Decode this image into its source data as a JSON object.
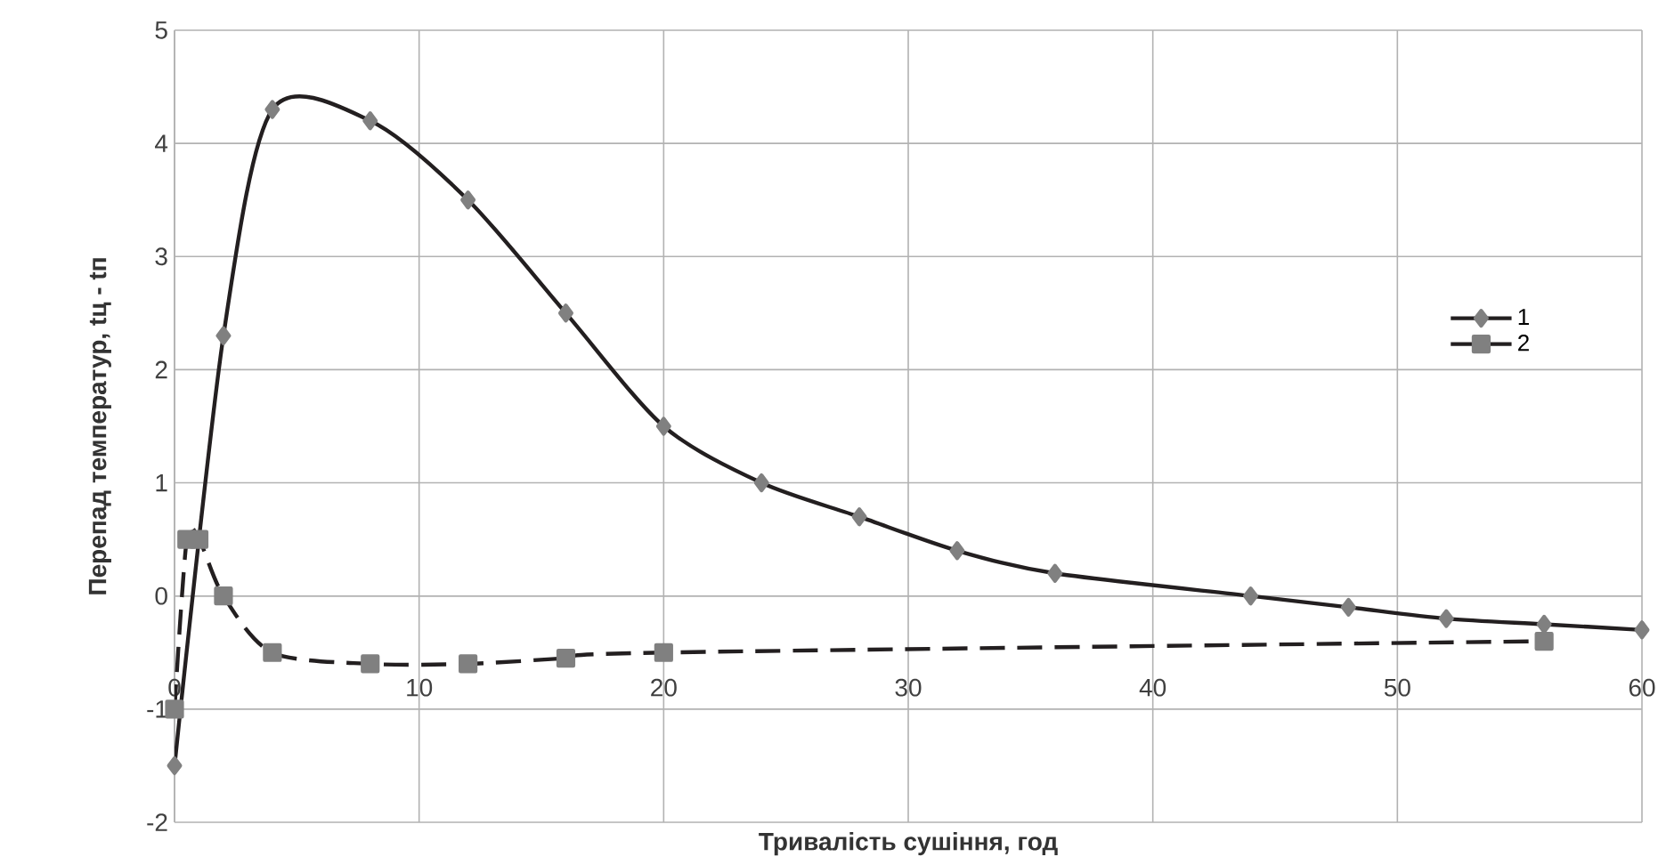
{
  "chart_data": {
    "type": "line",
    "xlabel": "Тривалість сушіння, год",
    "ylabel": "Перепад температур, tц - tп",
    "xlim": [
      0,
      60
    ],
    "ylim": [
      -2,
      5
    ],
    "xticks": [
      0,
      10,
      20,
      30,
      40,
      50,
      60
    ],
    "yticks": [
      -2,
      -1,
      0,
      1,
      2,
      3,
      4,
      5
    ],
    "grid": true,
    "legend": "right",
    "series": [
      {
        "name": "1",
        "color": "#231f20",
        "marker": "diamond",
        "line_style": "solid",
        "x": [
          0,
          2,
          4,
          8,
          12,
          16,
          20,
          24,
          28,
          32,
          36,
          44,
          48,
          52,
          56,
          60
        ],
        "values": [
          -1.5,
          2.3,
          4.3,
          4.2,
          3.5,
          2.5,
          1.5,
          1.0,
          0.7,
          0.4,
          0.2,
          0.0,
          -0.1,
          -0.2,
          -0.25,
          -0.3
        ]
      },
      {
        "name": "2",
        "color": "#231f20",
        "marker": "square",
        "line_style": "dashed",
        "x": [
          0,
          0.5,
          1,
          2,
          4,
          8,
          12,
          16,
          20,
          56
        ],
        "values": [
          -1.0,
          0.5,
          0.5,
          0.0,
          -0.5,
          -0.6,
          -0.6,
          -0.55,
          -0.5,
          -0.4
        ]
      }
    ]
  }
}
